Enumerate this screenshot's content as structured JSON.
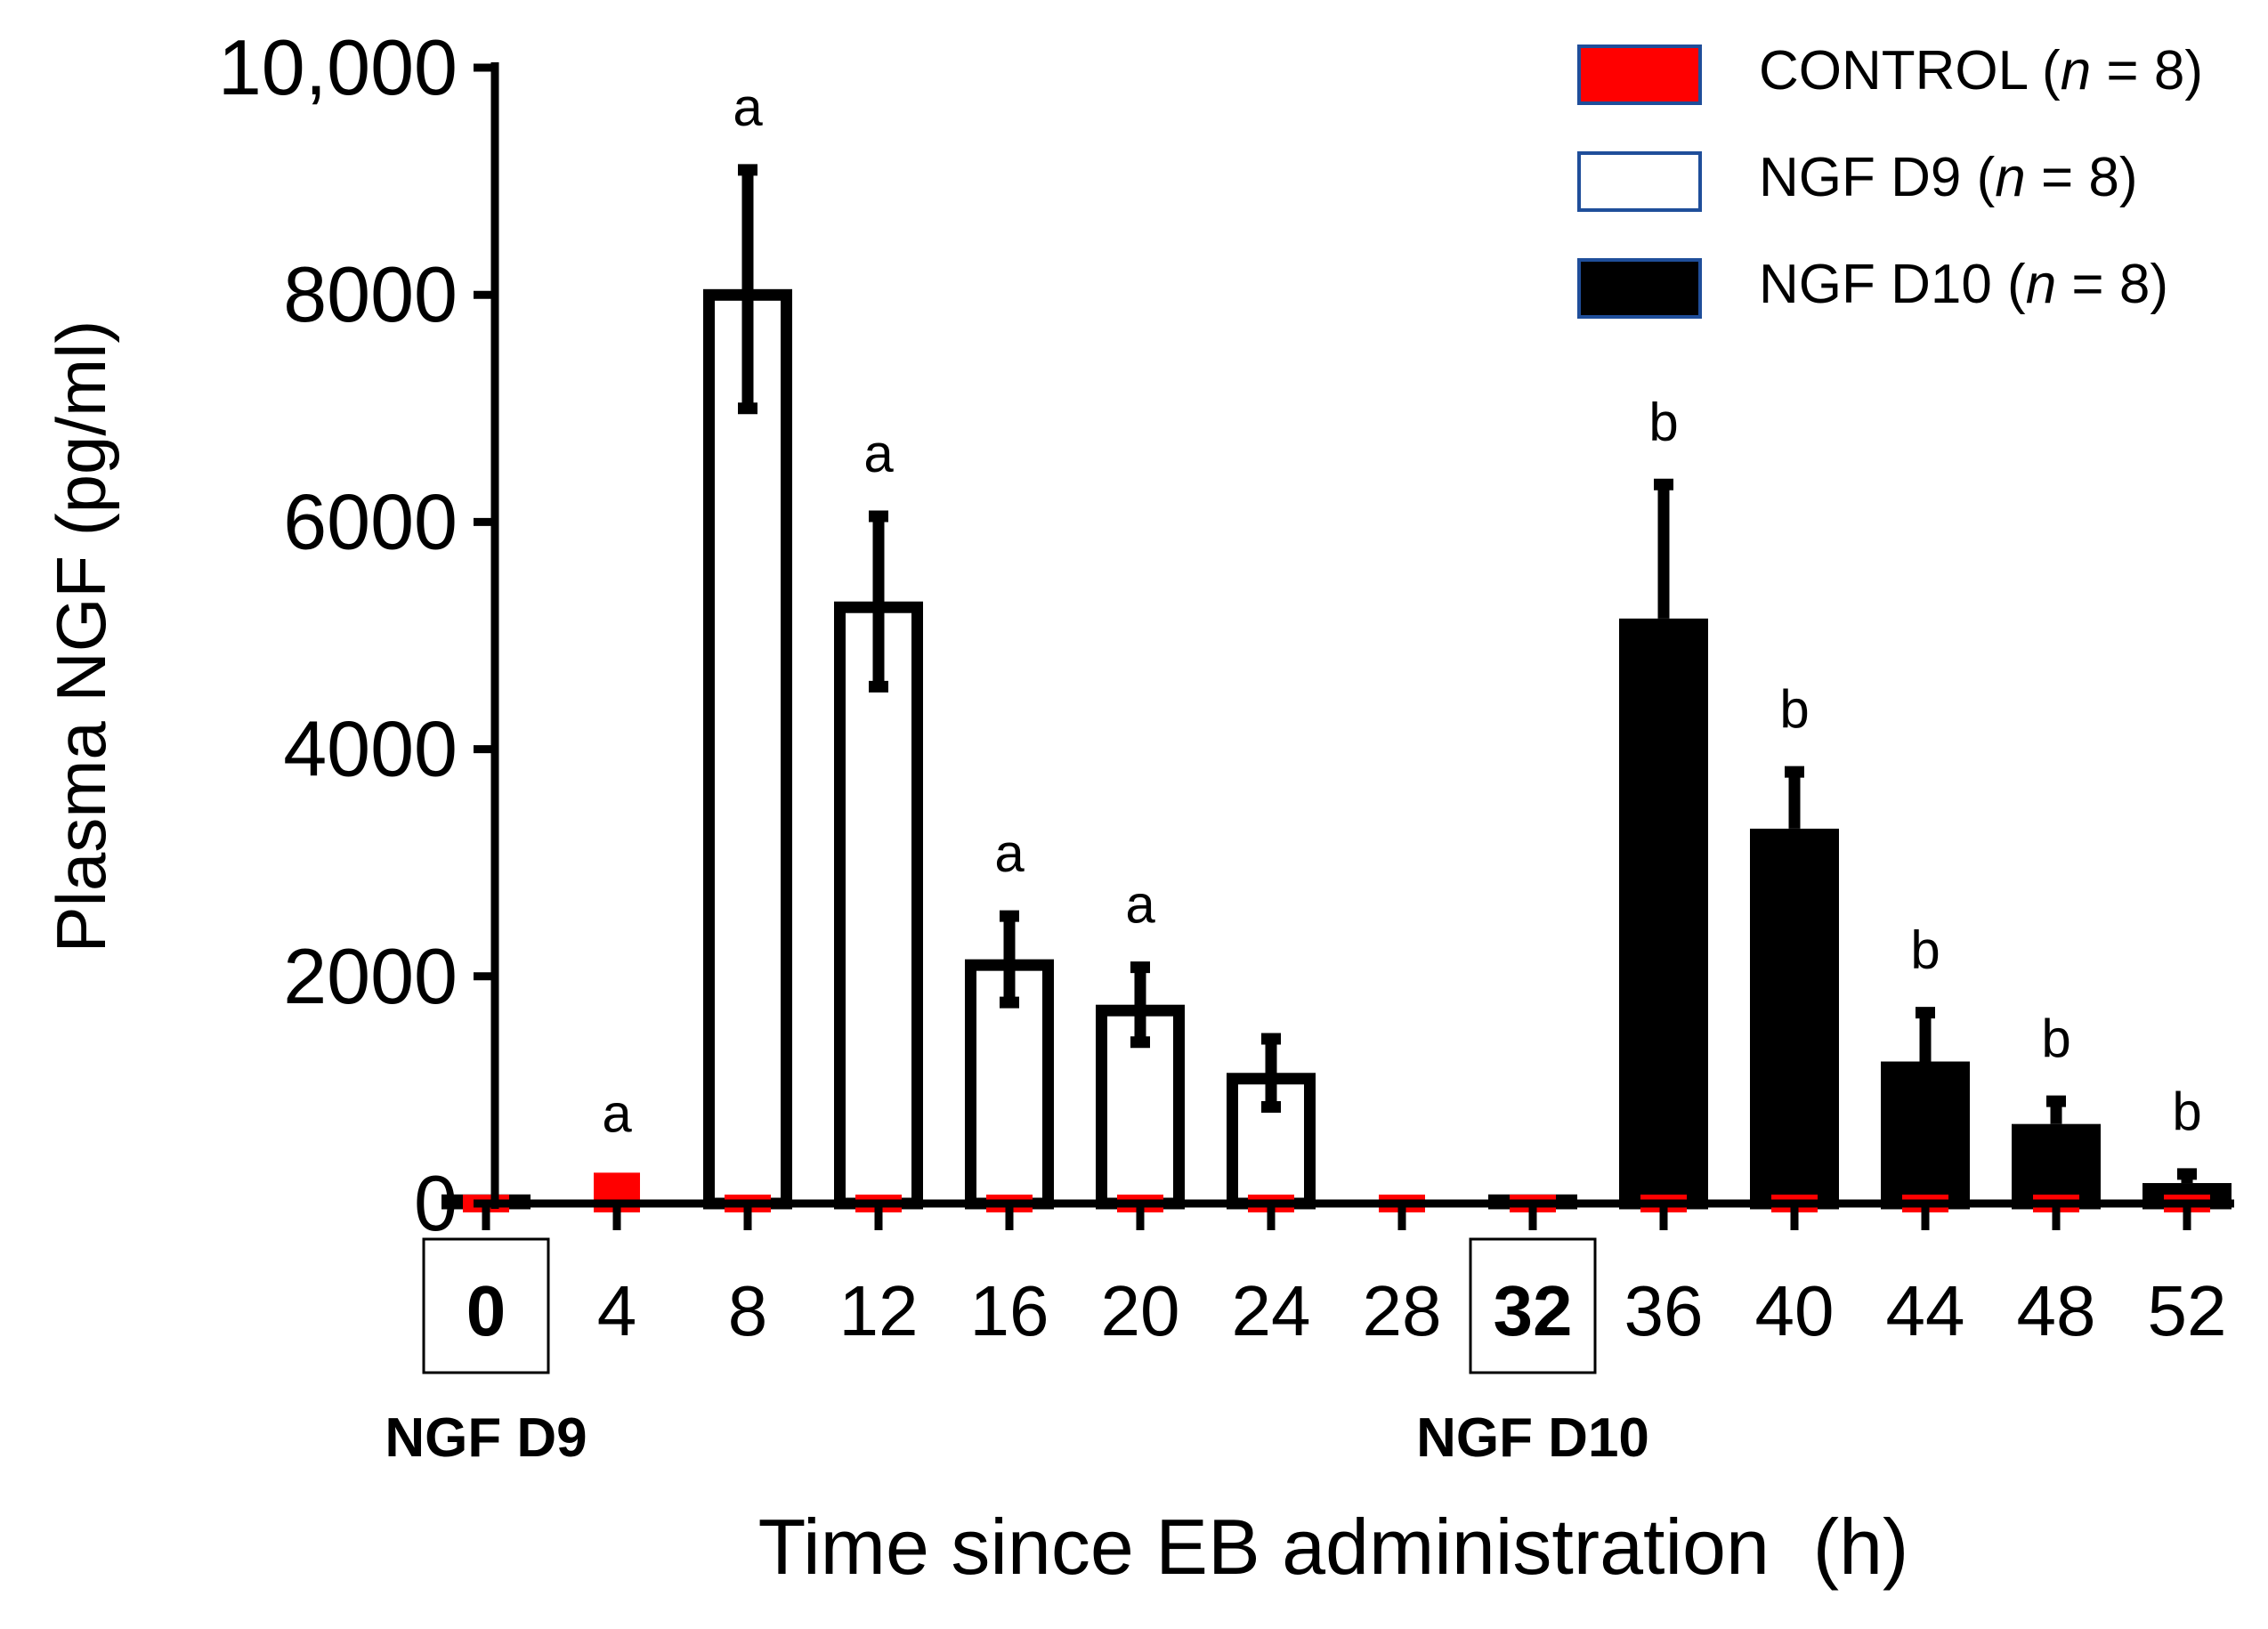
{
  "chart_data": {
    "type": "bar",
    "title": "",
    "ylabel": "Plasma NGF (pg/ml)",
    "xlabel": "Time since EB administration  (h)",
    "ylim": [
      0,
      10000
    ],
    "yticks": [
      0,
      2000,
      4000,
      6000,
      8000,
      10000
    ],
    "ytick_labels": [
      "0",
      "2000",
      "4000",
      "6000",
      "8000",
      "10,000"
    ],
    "categories": [
      "0",
      "4",
      "8",
      "12",
      "16",
      "20",
      "24",
      "28",
      "32",
      "36",
      "40",
      "44",
      "48",
      "52"
    ],
    "boxed_categories": [
      "0",
      "32"
    ],
    "dose_markers": [
      {
        "category": "0",
        "label": "NGF D9"
      },
      {
        "category": "32",
        "label": "NGF D10"
      }
    ],
    "series": [
      {
        "name": "NGF D9",
        "n_label": "NGF D9 (",
        "italic": "n",
        "suffix": " = 8)",
        "fill": "#ffffff",
        "stroke": "#000000",
        "values": [
          80,
          0,
          8050,
          5300,
          2150,
          1750,
          1150,
          0,
          0,
          0,
          0,
          0,
          0,
          0
        ],
        "errors": [
          0,
          0,
          1050,
          750,
          380,
          330,
          300,
          0,
          0,
          0,
          0,
          0,
          0,
          0
        ]
      },
      {
        "name": "NGF D10",
        "n_label": "NGF D10 (",
        "italic": "n",
        "suffix": " = 8)",
        "fill": "#000000",
        "stroke": "#000000",
        "values": [
          0,
          0,
          0,
          0,
          0,
          0,
          0,
          0,
          80,
          5150,
          3300,
          1250,
          700,
          180
        ],
        "errors": [
          0,
          0,
          0,
          0,
          0,
          0,
          0,
          0,
          0,
          1180,
          500,
          430,
          200,
          80
        ]
      },
      {
        "name": "CONTROL",
        "n_label": "CONTROL (",
        "italic": "n",
        "suffix": " = 8)",
        "fill": "#ff0000",
        "stroke": "#1f4e9a",
        "values": [
          60,
          60,
          20,
          20,
          40,
          20,
          70,
          70,
          20,
          20,
          20,
          20,
          20,
          20
        ],
        "errors": [
          0,
          180,
          0,
          0,
          0,
          0,
          0,
          0,
          0,
          0,
          0,
          0,
          0,
          0
        ]
      }
    ],
    "annotations": [
      {
        "category": "4",
        "text": "a"
      },
      {
        "category": "8",
        "text": "a"
      },
      {
        "category": "12",
        "text": "a"
      },
      {
        "category": "16",
        "text": "a"
      },
      {
        "category": "20",
        "text": "a"
      },
      {
        "category": "36",
        "text": "b"
      },
      {
        "category": "40",
        "text": "b"
      },
      {
        "category": "44",
        "text": "b"
      },
      {
        "category": "48",
        "text": "b"
      },
      {
        "category": "52",
        "text": "b"
      }
    ],
    "legend_position": "top-right"
  }
}
